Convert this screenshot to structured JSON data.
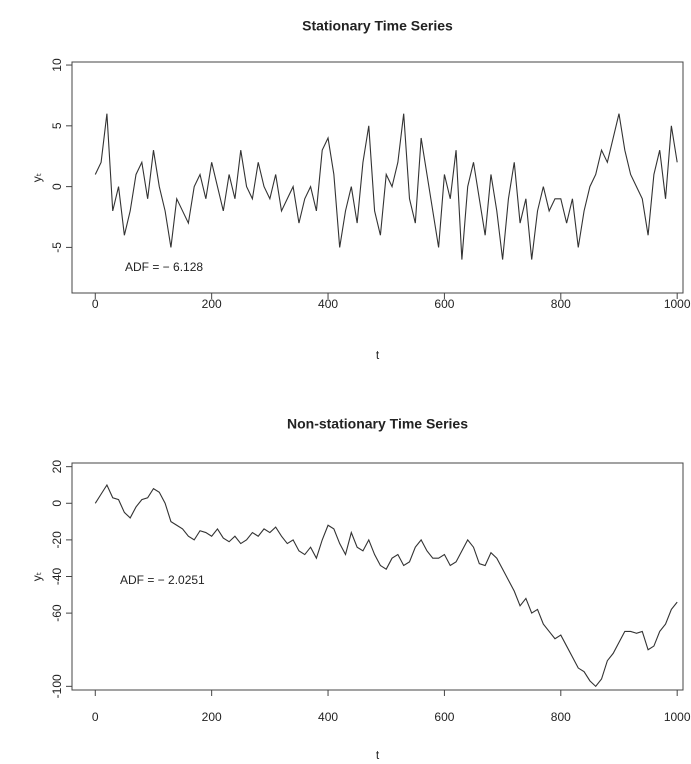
{
  "chart_data": [
    {
      "type": "line",
      "title": "Stationary Time Series",
      "xlabel": "t",
      "ylabel": "yₜ",
      "annotation": "ADF = − 6.128",
      "color": "#333333",
      "xlim": [
        -40,
        1010
      ],
      "ylim": [
        -8.75,
        10.25
      ],
      "xticks": [
        0,
        200,
        400,
        600,
        800,
        1000
      ],
      "yticks": [
        -5,
        0,
        5,
        10
      ],
      "x": [
        0,
        10,
        20,
        30,
        40,
        50,
        60,
        70,
        80,
        90,
        100,
        110,
        120,
        130,
        140,
        150,
        160,
        170,
        180,
        190,
        200,
        210,
        220,
        230,
        240,
        250,
        260,
        270,
        280,
        290,
        300,
        310,
        320,
        330,
        340,
        350,
        360,
        370,
        380,
        390,
        400,
        410,
        420,
        430,
        440,
        450,
        460,
        470,
        480,
        490,
        500,
        510,
        520,
        530,
        540,
        550,
        560,
        570,
        580,
        590,
        600,
        610,
        620,
        630,
        640,
        650,
        660,
        670,
        680,
        690,
        700,
        710,
        720,
        730,
        740,
        750,
        760,
        770,
        780,
        790,
        800,
        810,
        820,
        830,
        840,
        850,
        860,
        870,
        880,
        890,
        900,
        910,
        920,
        930,
        940,
        950,
        960,
        970,
        980,
        990,
        1000
      ],
      "values": [
        1,
        2,
        6,
        -2,
        0,
        -4,
        -2,
        1,
        2,
        -1,
        3,
        0,
        -2,
        -5,
        -1,
        -2,
        -3,
        0,
        1,
        -1,
        2,
        0,
        -2,
        1,
        -1,
        3,
        0,
        -1,
        2,
        0,
        -1,
        1,
        -2,
        -1,
        0,
        -3,
        -1,
        0,
        -2,
        3,
        4,
        1,
        -5,
        -2,
        0,
        -3,
        2,
        5,
        -2,
        -4,
        1,
        0,
        2,
        6,
        -1,
        -3,
        4,
        1,
        -2,
        -5,
        1,
        -1,
        3,
        -6,
        0,
        2,
        -1,
        -4,
        1,
        -2,
        -6,
        -1,
        2,
        -3,
        -1,
        -6,
        -2,
        0,
        -2,
        -1,
        -1,
        -3,
        -1,
        -5,
        -2,
        0,
        1,
        3,
        2,
        4,
        6,
        3,
        1,
        0,
        -1,
        -4,
        1,
        3,
        -1,
        5,
        2
      ]
    },
    {
      "type": "line",
      "title": "Non-stationary Time Series",
      "xlabel": "t",
      "ylabel": "yₜ",
      "annotation": "ADF = − 2.0251",
      "color": "#333333",
      "xlim": [
        -40,
        1010
      ],
      "ylim": [
        -102,
        22
      ],
      "xticks": [
        0,
        200,
        400,
        600,
        800,
        1000
      ],
      "yticks": [
        -100,
        -60,
        -40,
        -20,
        0,
        20
      ],
      "x": [
        0,
        10,
        20,
        30,
        40,
        50,
        60,
        70,
        80,
        90,
        100,
        110,
        120,
        130,
        140,
        150,
        160,
        170,
        180,
        190,
        200,
        210,
        220,
        230,
        240,
        250,
        260,
        270,
        280,
        290,
        300,
        310,
        320,
        330,
        340,
        350,
        360,
        370,
        380,
        390,
        400,
        410,
        420,
        430,
        440,
        450,
        460,
        470,
        480,
        490,
        500,
        510,
        520,
        530,
        540,
        550,
        560,
        570,
        580,
        590,
        600,
        610,
        620,
        630,
        640,
        650,
        660,
        670,
        680,
        690,
        700,
        710,
        720,
        730,
        740,
        750,
        760,
        770,
        780,
        790,
        800,
        810,
        820,
        830,
        840,
        850,
        860,
        870,
        880,
        890,
        900,
        910,
        920,
        930,
        940,
        950,
        960,
        970,
        980,
        990,
        1000
      ],
      "values": [
        0,
        5,
        10,
        3,
        2,
        -5,
        -8,
        -2,
        2,
        3,
        8,
        6,
        0,
        -10,
        -12,
        -14,
        -18,
        -20,
        -15,
        -16,
        -18,
        -14,
        -19,
        -21,
        -18,
        -22,
        -20,
        -16,
        -18,
        -14,
        -16,
        -13,
        -18,
        -22,
        -20,
        -26,
        -28,
        -24,
        -30,
        -20,
        -12,
        -14,
        -22,
        -28,
        -16,
        -24,
        -26,
        -20,
        -28,
        -34,
        -36,
        -30,
        -28,
        -34,
        -32,
        -24,
        -20,
        -26,
        -30,
        -30,
        -28,
        -34,
        -32,
        -26,
        -20,
        -24,
        -33,
        -34,
        -27,
        -30,
        -36,
        -42,
        -48,
        -56,
        -52,
        -60,
        -58,
        -66,
        -70,
        -74,
        -72,
        -78,
        -84,
        -90,
        -92,
        -97,
        -100,
        -96,
        -86,
        -82,
        -76,
        -70,
        -70,
        -71,
        -70,
        -80,
        -78,
        -70,
        -66,
        -58,
        -54
      ]
    }
  ]
}
